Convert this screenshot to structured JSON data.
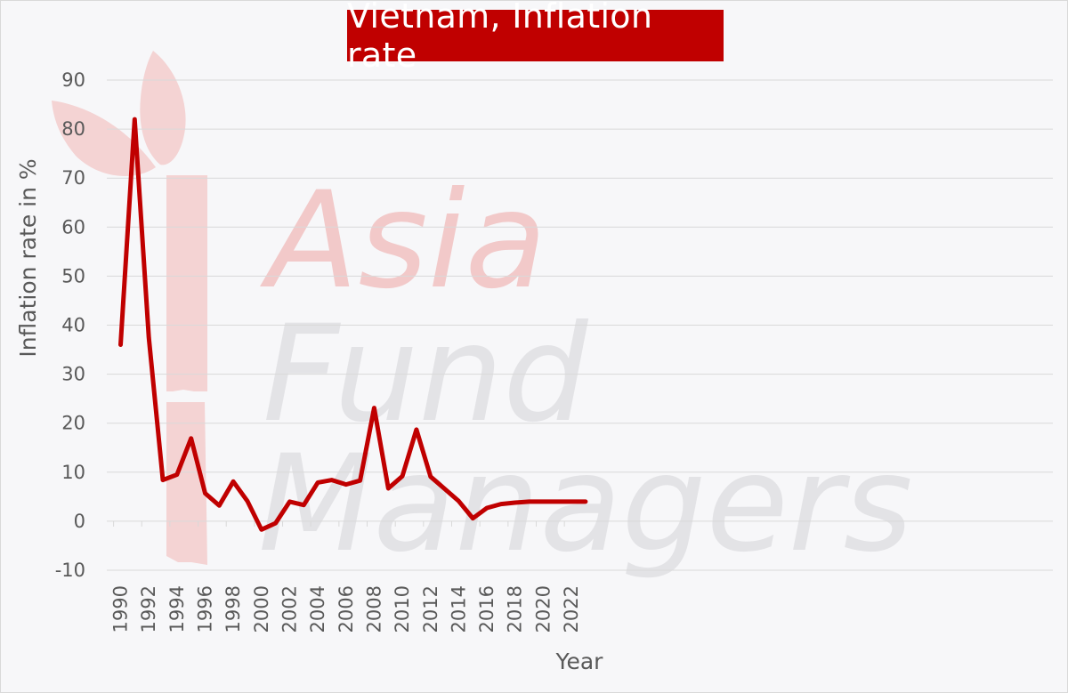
{
  "chart_data": {
    "type": "line",
    "title": "Vietnam, Inflation rate",
    "xlabel": "Year",
    "ylabel": "Inflation rate in %",
    "ylim": [
      -10,
      90
    ],
    "yticks": [
      90,
      80,
      70,
      60,
      50,
      40,
      30,
      20,
      10,
      0,
      -10
    ],
    "xlim": [
      1990,
      2023
    ],
    "xticks": [
      1990,
      1992,
      1994,
      1996,
      1998,
      2000,
      2002,
      2004,
      2006,
      2008,
      2010,
      2012,
      2014,
      2016,
      2018,
      2020,
      2022
    ],
    "grid": true,
    "legend": "none",
    "line_color": "#c00000",
    "x": [
      1990,
      1991,
      1992,
      1993,
      1994,
      1995,
      1996,
      1997,
      1998,
      1999,
      2000,
      2001,
      2002,
      2003,
      2004,
      2005,
      2006,
      2007,
      2008,
      2009,
      2010,
      2011,
      2012,
      2013,
      2014,
      2015,
      2016,
      2017,
      2018,
      2019,
      2020,
      2021,
      2022,
      2023
    ],
    "values": [
      36,
      82,
      37.5,
      8.4,
      9.5,
      16.9,
      5.7,
      3.2,
      8.1,
      4.1,
      -1.7,
      -0.4,
      4.0,
      3.3,
      7.9,
      8.4,
      7.5,
      8.3,
      23.1,
      6.7,
      9.2,
      18.7,
      9.1,
      6.6,
      4.1,
      0.6,
      2.7,
      3.5,
      3.8,
      4.0,
      4.0,
      4.0,
      4.0,
      4.0
    ]
  },
  "watermark": {
    "lines": [
      "Asia",
      "Fund",
      "Managers"
    ],
    "colors": {
      "red": "#f2c9c9",
      "gray": "#e3e3e6"
    }
  }
}
